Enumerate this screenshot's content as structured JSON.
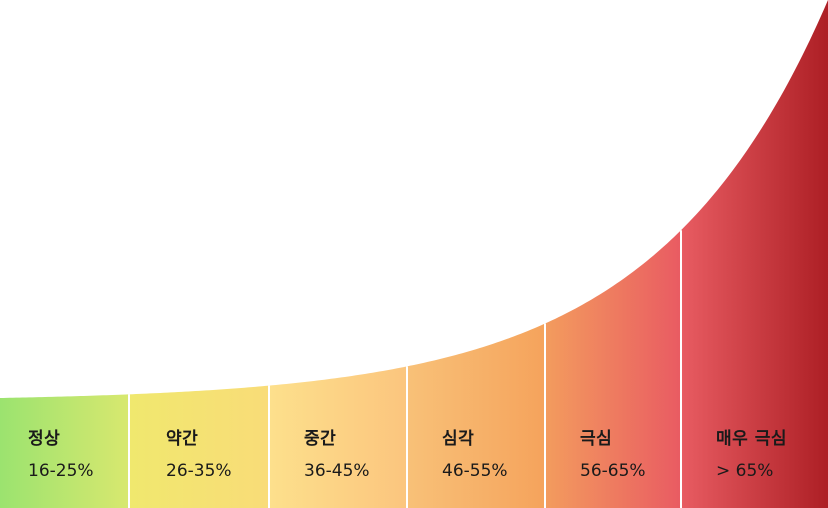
{
  "segments": [
    {
      "name": "정상",
      "range": "16-25%",
      "color_start": "#9be36f",
      "color_end": "#d8e86f"
    },
    {
      "name": "약간",
      "range": "26-35%",
      "color_start": "#f0e86e",
      "color_end": "#f9dc78"
    },
    {
      "name": "중간",
      "range": "36-45%",
      "color_start": "#fde08c",
      "color_end": "#fbc57e"
    },
    {
      "name": "심각",
      "range": "46-55%",
      "color_start": "#f8c178",
      "color_end": "#f5a35c"
    },
    {
      "name": "극심",
      "range": "56-65%",
      "color_start": "#f39c5e",
      "color_end": "#e95b62"
    },
    {
      "name": "매우 극심",
      "range": "> 65%",
      "color_start": "#e85c62",
      "color_end": "#ad1f25"
    }
  ],
  "divider_color": "#ffffff"
}
